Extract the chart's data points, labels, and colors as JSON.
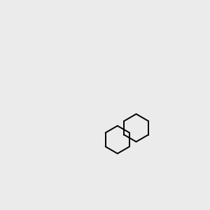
{
  "background_color": "#ebebeb",
  "figsize": [
    3.0,
    3.0
  ],
  "dpi": 100,
  "atom_colors": {
    "O": "#ff0000",
    "N": "#0000cd",
    "C": "#000000",
    "H": "#708090"
  }
}
